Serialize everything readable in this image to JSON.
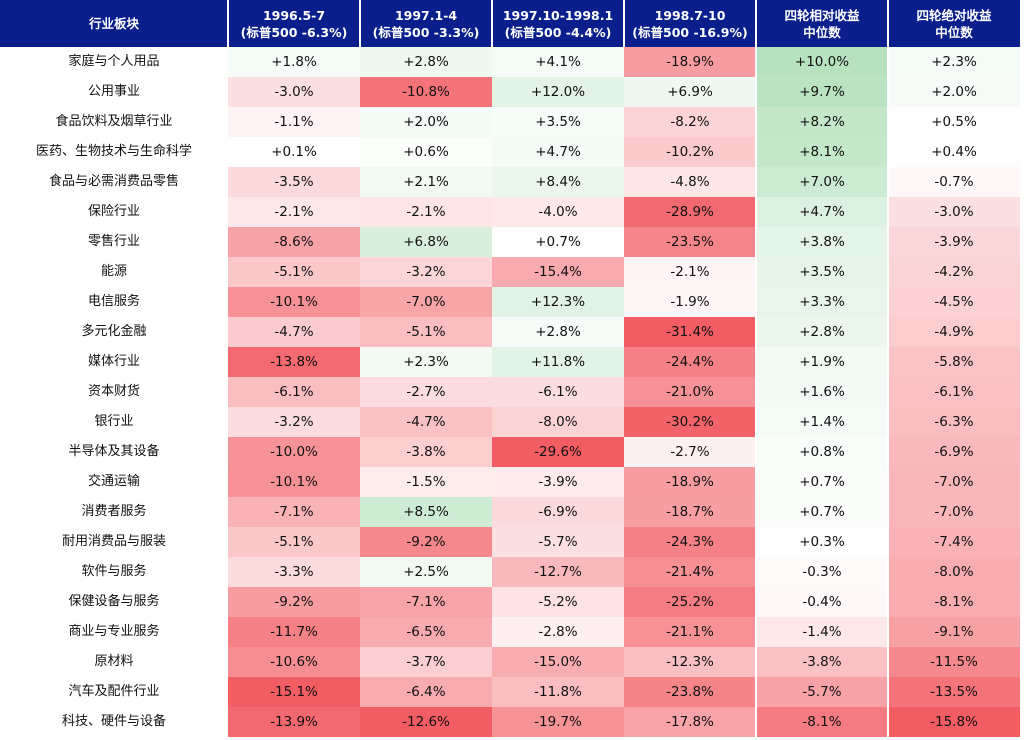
{
  "chart_data": {
    "type": "heatmap",
    "corner_label": "行业板块",
    "columns": [
      {
        "line1": "1996.5-7",
        "line2": "(标普500 -6.3%)"
      },
      {
        "line1": "1997.1-4",
        "line2": "(标普500 -3.3%)"
      },
      {
        "line1": "1997.10-1998.1",
        "line2": "(标普500 -4.4%)"
      },
      {
        "line1": "1998.7-10",
        "line2": "(标普500 -16.9%)"
      },
      {
        "line1": "四轮相对收益",
        "line2": "中位数"
      },
      {
        "line1": "四轮绝对收益",
        "line2": "中位数"
      }
    ],
    "unit": "%",
    "rows": [
      {
        "label": "家庭与个人用品",
        "values": [
          1.8,
          2.8,
          4.1,
          -18.9,
          10.0,
          2.3
        ]
      },
      {
        "label": "公用事业",
        "values": [
          -3.0,
          -10.8,
          12.0,
          6.9,
          9.7,
          2.0
        ]
      },
      {
        "label": "食品饮料及烟草行业",
        "values": [
          -1.1,
          2.0,
          3.5,
          -8.2,
          8.2,
          0.5
        ]
      },
      {
        "label": "医药、生物技术与生命科学",
        "values": [
          0.1,
          0.6,
          4.7,
          -10.2,
          8.1,
          0.4
        ]
      },
      {
        "label": "食品与必需消费品零售",
        "values": [
          -3.5,
          2.1,
          8.4,
          -4.8,
          7.0,
          -0.7
        ]
      },
      {
        "label": "保险行业",
        "values": [
          -2.1,
          -2.1,
          -4.0,
          -28.9,
          4.7,
          -3.0
        ]
      },
      {
        "label": "零售行业",
        "values": [
          -8.6,
          6.8,
          0.7,
          -23.5,
          3.8,
          -3.9
        ]
      },
      {
        "label": "能源",
        "values": [
          -5.1,
          -3.2,
          -15.4,
          -2.1,
          3.5,
          -4.2
        ]
      },
      {
        "label": "电信服务",
        "values": [
          -10.1,
          -7.0,
          12.3,
          -1.9,
          3.3,
          -4.5
        ]
      },
      {
        "label": "多元化金融",
        "values": [
          -4.7,
          -5.1,
          2.8,
          -31.4,
          2.8,
          -4.9
        ]
      },
      {
        "label": "媒体行业",
        "values": [
          -13.8,
          2.3,
          11.8,
          -24.4,
          1.9,
          -5.8
        ]
      },
      {
        "label": "资本财货",
        "values": [
          -6.1,
          -2.7,
          -6.1,
          -21.0,
          1.6,
          -6.1
        ]
      },
      {
        "label": "银行业",
        "values": [
          -3.2,
          -4.7,
          -8.0,
          -30.2,
          1.4,
          -6.3
        ]
      },
      {
        "label": "半导体及其设备",
        "values": [
          -10.0,
          -3.8,
          -29.6,
          -2.7,
          0.8,
          -6.9
        ]
      },
      {
        "label": "交通运输",
        "values": [
          -10.1,
          -1.5,
          -3.9,
          -18.9,
          0.7,
          -7.0
        ]
      },
      {
        "label": "消费者服务",
        "values": [
          -7.1,
          8.5,
          -6.9,
          -18.7,
          0.7,
          -7.0
        ]
      },
      {
        "label": "耐用消费品与服装",
        "values": [
          -5.1,
          -9.2,
          -5.7,
          -24.3,
          0.3,
          -7.4
        ]
      },
      {
        "label": "软件与服务",
        "values": [
          -3.3,
          2.5,
          -12.7,
          -21.4,
          -0.3,
          -8.0
        ]
      },
      {
        "label": "保健设备与服务",
        "values": [
          -9.2,
          -7.1,
          -5.2,
          -25.2,
          -0.4,
          -8.1
        ]
      },
      {
        "label": "商业与专业服务",
        "values": [
          -11.7,
          -6.5,
          -2.8,
          -21.1,
          -1.4,
          -9.1
        ]
      },
      {
        "label": "原材料",
        "values": [
          -10.6,
          -3.7,
          -15.0,
          -12.3,
          -3.8,
          -11.5
        ]
      },
      {
        "label": "汽车及配件行业",
        "values": [
          -15.1,
          -6.4,
          -11.8,
          -23.8,
          -5.7,
          -13.5
        ]
      },
      {
        "label": "科技、硬件与设备",
        "values": [
          -13.9,
          -12.6,
          -19.7,
          -17.8,
          -8.1,
          -15.8
        ]
      }
    ],
    "colors": {
      "header_bg": "#0b1f8c",
      "header_text": "#ffffff",
      "positive": "#5fbf70",
      "negative": "#f0464e",
      "neutral": "#ffffff"
    }
  }
}
